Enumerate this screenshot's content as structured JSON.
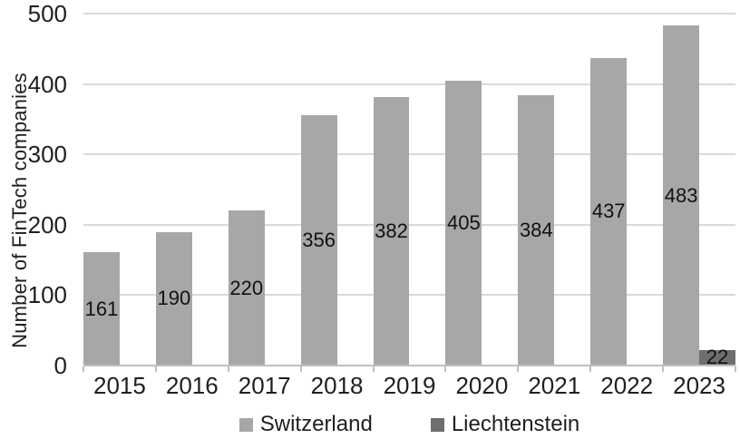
{
  "chart_data": {
    "type": "bar",
    "title": "",
    "ylabel": "Number of FinTech companies",
    "xlabel": "",
    "categories": [
      "2015",
      "2016",
      "2017",
      "2018",
      "2019",
      "2020",
      "2021",
      "2022",
      "2023"
    ],
    "series": [
      {
        "name": "Switzerland",
        "color": "#a7a7a7",
        "values": [
          161,
          190,
          220,
          356,
          382,
          405,
          384,
          437,
          483
        ]
      },
      {
        "name": "Liechtenstein",
        "color": "#6e6e6e",
        "values": [
          null,
          null,
          null,
          null,
          null,
          null,
          null,
          null,
          22
        ]
      }
    ],
    "ylim": [
      0,
      500
    ],
    "yticks": [
      0,
      100,
      200,
      300,
      400,
      500
    ],
    "grid": true,
    "legend_position": "bottom",
    "value_label_position": "center-of-bar"
  },
  "colors": {
    "gridline": "#d9d9d9",
    "axis_line": "#bfbfbf",
    "tick_text": "#1f1f1f",
    "value_text": "#111111",
    "background": "#ffffff"
  }
}
